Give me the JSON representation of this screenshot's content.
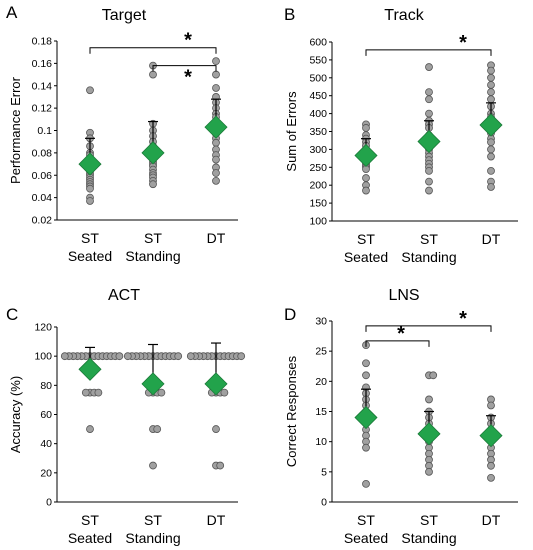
{
  "chart_data": [
    {
      "type": "scatter",
      "panel_label": "A",
      "title": "Target",
      "ylabel": "Performance Error",
      "ylim": [
        0.02,
        0.18
      ],
      "yticks": [
        "0.02",
        "0.04",
        "0.06",
        "0.08",
        "0.1",
        "0.12",
        "0.14",
        "0.16",
        "0.18"
      ],
      "categories": [
        {
          "line1": "ST",
          "line2": "Seated"
        },
        {
          "line1": "ST",
          "line2": "Standing"
        },
        {
          "line1": "DT",
          "line2": ""
        }
      ],
      "means": [
        0.07,
        0.08,
        0.103
      ],
      "sd_upper": [
        0.093,
        0.108,
        0.128
      ],
      "points": [
        [
          0.136,
          0.098,
          0.093,
          0.086,
          0.08,
          0.078,
          0.075,
          0.072,
          0.07,
          0.068,
          0.066,
          0.064,
          0.062,
          0.06,
          0.058,
          0.056,
          0.054,
          0.052,
          0.05,
          0.048,
          0.04,
          0.037
        ],
        [
          0.158,
          0.15,
          0.106,
          0.1,
          0.095,
          0.09,
          0.086,
          0.083,
          0.08,
          0.078,
          0.075,
          0.072,
          0.07,
          0.068,
          0.065,
          0.062,
          0.06,
          0.058,
          0.055,
          0.052
        ],
        [
          0.162,
          0.15,
          0.138,
          0.13,
          0.125,
          0.12,
          0.115,
          0.112,
          0.108,
          0.104,
          0.1,
          0.097,
          0.093,
          0.089,
          0.083,
          0.078,
          0.074,
          0.067,
          0.062,
          0.055
        ]
      ],
      "significance": [
        {
          "from": 0,
          "to": 2,
          "level": 0.174,
          "label": "*"
        },
        {
          "from": 1,
          "to": 2,
          "level": 0.158,
          "label": "*"
        }
      ],
      "colors": {
        "point": "#a0a0a0",
        "diamond": "#22a34b"
      }
    },
    {
      "type": "scatter",
      "panel_label": "B",
      "title": "Track",
      "ylabel": "Sum of Errors",
      "ylim": [
        100,
        600
      ],
      "yticks": [
        "100",
        "150",
        "200",
        "250",
        "300",
        "350",
        "400",
        "450",
        "500",
        "550",
        "600"
      ],
      "categories": [
        {
          "line1": "ST",
          "line2": "Seated"
        },
        {
          "line1": "ST",
          "line2": "Standing"
        },
        {
          "line1": "DT",
          "line2": ""
        }
      ],
      "means": [
        283,
        322,
        368
      ],
      "sd_upper": [
        330,
        380,
        430
      ],
      "points": [
        [
          370,
          360,
          340,
          330,
          320,
          310,
          300,
          295,
          290,
          285,
          280,
          275,
          270,
          265,
          260,
          255,
          250,
          245,
          220,
          200,
          185
        ],
        [
          530,
          460,
          440,
          400,
          380,
          370,
          360,
          340,
          330,
          320,
          310,
          300,
          290,
          280,
          270,
          260,
          250,
          240,
          210,
          185
        ],
        [
          535,
          520,
          500,
          480,
          460,
          440,
          420,
          400,
          390,
          380,
          370,
          360,
          345,
          330,
          320,
          300,
          280,
          240,
          210,
          195
        ]
      ],
      "significance": [
        {
          "from": 0,
          "to": 2,
          "level": 578,
          "label": "*"
        }
      ],
      "colors": {
        "point": "#a0a0a0",
        "diamond": "#22a34b"
      }
    },
    {
      "type": "scatter",
      "panel_label": "C",
      "title": "ACT",
      "ylabel": "Accuracy (%)",
      "ylim": [
        0,
        120
      ],
      "yticks": [
        "0",
        "20",
        "40",
        "60",
        "80",
        "100",
        "120"
      ],
      "categories": [
        {
          "line1": "ST",
          "line2": "Seated"
        },
        {
          "line1": "ST",
          "line2": "Standing"
        },
        {
          "line1": "DT",
          "line2": ""
        }
      ],
      "means": [
        91,
        81,
        81
      ],
      "sd_upper": [
        106,
        108,
        109
      ],
      "points": [
        [
          100,
          100,
          100,
          100,
          100,
          100,
          100,
          100,
          100,
          100,
          100,
          100,
          100,
          100,
          75,
          75,
          75,
          75,
          50
        ],
        [
          100,
          100,
          100,
          100,
          100,
          100,
          100,
          100,
          100,
          100,
          100,
          100,
          100,
          75,
          75,
          75,
          75,
          50,
          50,
          25
        ],
        [
          100,
          100,
          100,
          100,
          100,
          100,
          100,
          100,
          100,
          100,
          100,
          100,
          100,
          75,
          75,
          75,
          75,
          50,
          25,
          25
        ]
      ],
      "significance": [],
      "colors": {
        "point": "#a0a0a0",
        "diamond": "#22a34b"
      }
    },
    {
      "type": "scatter",
      "panel_label": "D",
      "title": "LNS",
      "ylabel": "Correct Responses",
      "ylim": [
        0,
        30
      ],
      "yticks": [
        "0",
        "5",
        "10",
        "15",
        "20",
        "25",
        "30"
      ],
      "categories": [
        {
          "line1": "ST",
          "line2": "Seated"
        },
        {
          "line1": "ST",
          "line2": "Standing"
        },
        {
          "line1": "DT",
          "line2": ""
        }
      ],
      "means": [
        14,
        11.3,
        11
      ],
      "sd_upper": [
        18.7,
        15,
        14.3
      ],
      "points": [
        [
          26,
          23,
          21,
          19,
          18,
          17,
          16,
          15,
          14,
          13,
          12,
          11,
          10,
          9,
          3
        ],
        [
          21,
          21,
          17,
          15,
          14,
          13,
          12,
          11,
          10,
          9,
          8,
          7,
          6,
          5
        ],
        [
          17,
          16,
          14,
          13,
          12,
          11,
          10,
          9,
          8,
          7,
          6,
          4
        ]
      ],
      "significance": [
        {
          "from": 0,
          "to": 2,
          "level": 29.2,
          "label": "*"
        },
        {
          "from": 0,
          "to": 1,
          "level": 26.7,
          "label": "*"
        }
      ],
      "colors": {
        "point": "#a0a0a0",
        "diamond": "#22a34b"
      }
    }
  ]
}
